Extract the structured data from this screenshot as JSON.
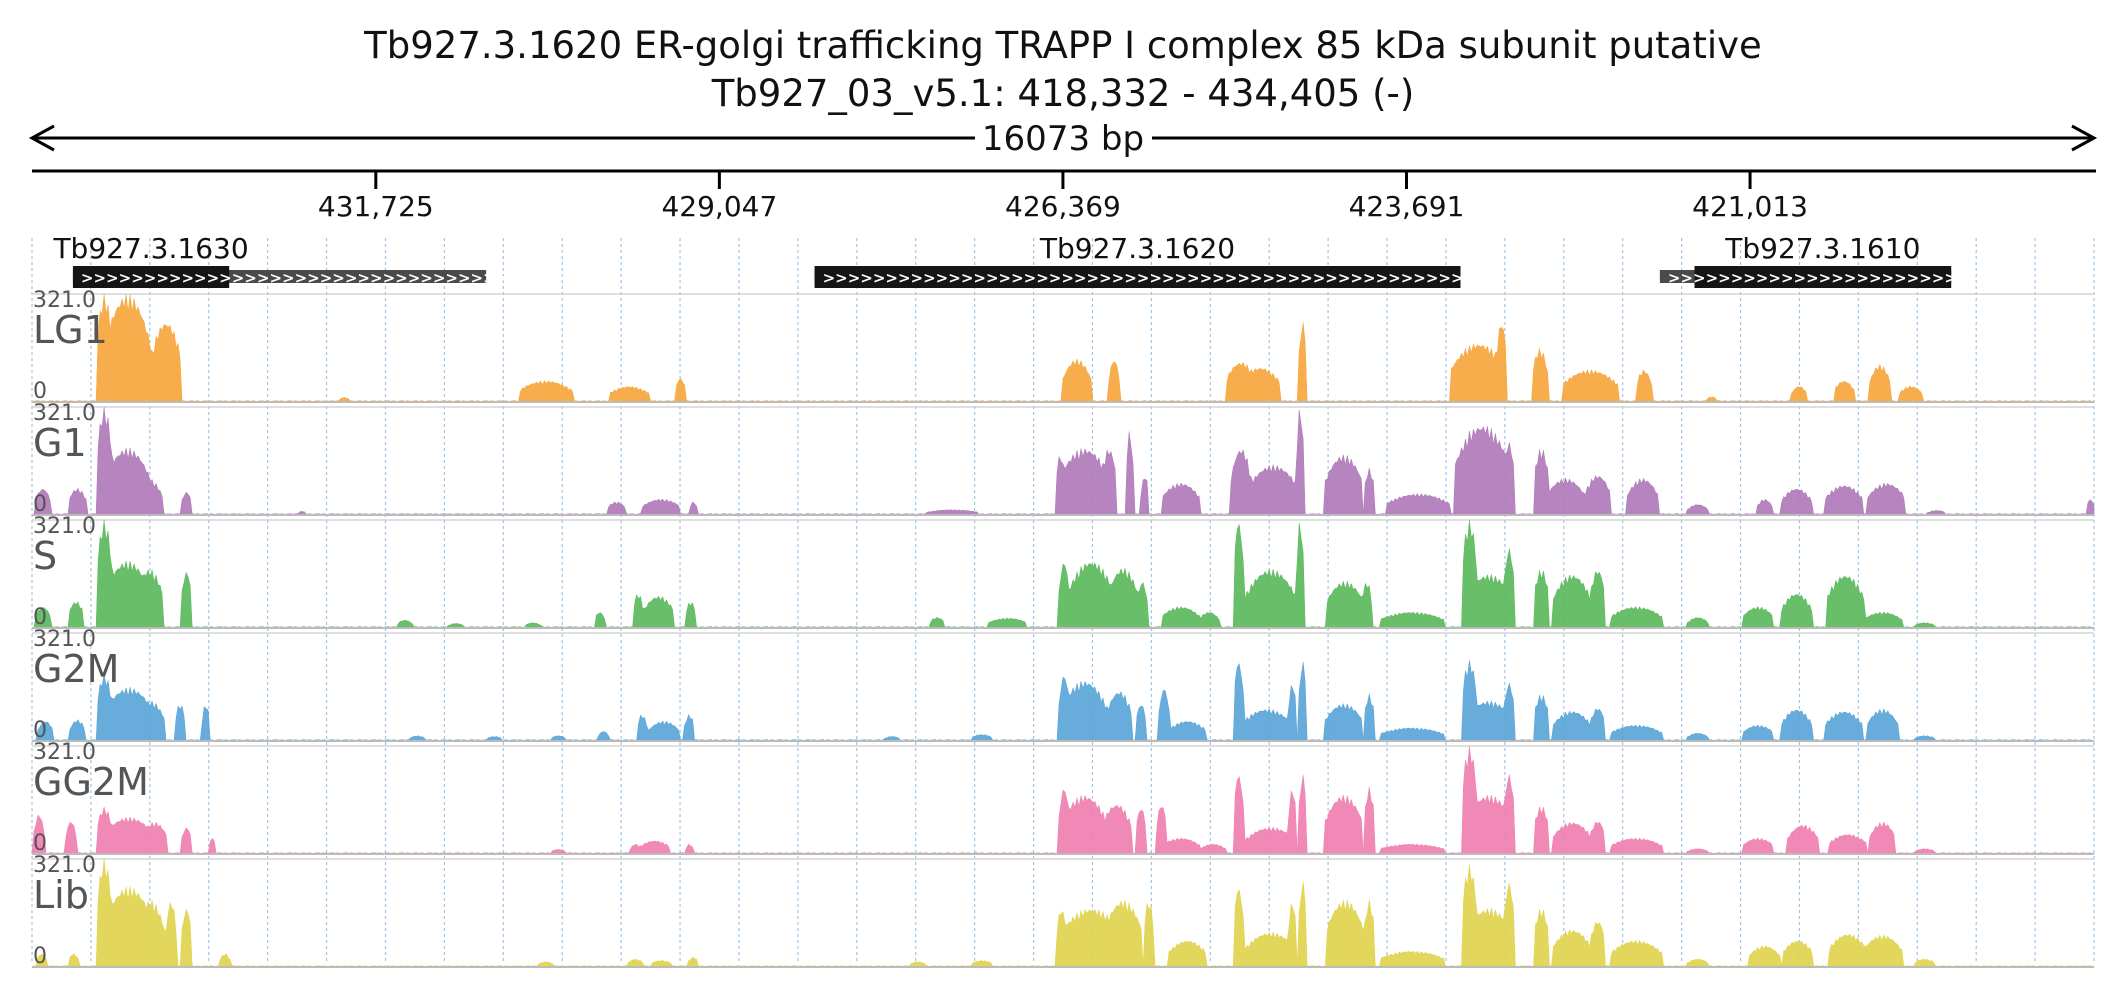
{
  "header": {
    "title": "Tb927.3.1620  ER-golgi trafficking TRAPP I complex 85 kDa subunit  putative",
    "subtitle": "Tb927_03_v5.1: 418,332 - 434,405 (-)",
    "span_label": "16073 bp"
  },
  "chart_data": {
    "type": "area",
    "region": {
      "chromosome": "Tb927_03_v5.1",
      "start": 418332,
      "end": 434405,
      "strand": "-"
    },
    "x_ticks": [
      {
        "pos": 431725,
        "label": "431,725"
      },
      {
        "pos": 429047,
        "label": "429,047"
      },
      {
        "pos": 426369,
        "label": "426,369"
      },
      {
        "pos": 423691,
        "label": "423,691"
      },
      {
        "pos": 421013,
        "label": "421,013"
      }
    ],
    "genes": [
      {
        "label": "Tb927.3.1630",
        "start": 430865,
        "end": 434086,
        "cds_start": 432868,
        "cds_end": 434086,
        "strand": "-"
      },
      {
        "label": "Tb927.3.1620",
        "start": 423270,
        "end": 428305,
        "cds_start": 423270,
        "cds_end": 428305,
        "strand": "-"
      },
      {
        "label": "Tb927.3.1610",
        "start": 419445,
        "end": 421716,
        "cds_start": 419445,
        "cds_end": 421446,
        "strand": "-"
      }
    ],
    "ymax_label": "321.0",
    "ymin_label": "0",
    "ylim": [
      0,
      321
    ],
    "grid": true,
    "series": [
      {
        "name": "LG1",
        "color": "#f6a63c",
        "peaks": [
          [
            433840,
            60,
            321
          ],
          [
            433660,
            180,
            321
          ],
          [
            433360,
            120,
            241
          ],
          [
            433780,
            40,
            160
          ],
          [
            433300,
            30,
            176
          ],
          [
            431970,
            40,
            14
          ],
          [
            430400,
            210,
            64
          ],
          [
            429750,
            160,
            47
          ],
          [
            429350,
            40,
            72
          ],
          [
            426260,
            110,
            128
          ],
          [
            425970,
            40,
            128
          ],
          [
            424980,
            120,
            120
          ],
          [
            424830,
            160,
            104
          ],
          [
            424500,
            30,
            241
          ],
          [
            423130,
            220,
            176
          ],
          [
            422950,
            40,
            241
          ],
          [
            422650,
            60,
            160
          ],
          [
            422260,
            220,
            96
          ],
          [
            421840,
            60,
            96
          ],
          [
            421310,
            40,
            16
          ],
          [
            420630,
            60,
            48
          ],
          [
            420280,
            80,
            64
          ],
          [
            420000,
            80,
            112
          ],
          [
            419760,
            90,
            48
          ]
        ]
      },
      {
        "name": "G1",
        "color": "#b07ab8",
        "peaks": [
          [
            434320,
            60,
            80
          ],
          [
            434050,
            70,
            80
          ],
          [
            433840,
            60,
            321
          ],
          [
            433660,
            180,
            200
          ],
          [
            433500,
            110,
            110
          ],
          [
            433200,
            40,
            70
          ],
          [
            432300,
            30,
            12
          ],
          [
            429850,
            70,
            40
          ],
          [
            429500,
            150,
            48
          ],
          [
            429250,
            30,
            40
          ],
          [
            427230,
            200,
            16
          ],
          [
            426390,
            40,
            180
          ],
          [
            426200,
            200,
            200
          ],
          [
            426010,
            60,
            200
          ],
          [
            425850,
            30,
            250
          ],
          [
            425730,
            30,
            120
          ],
          [
            425450,
            150,
            96
          ],
          [
            424980,
            80,
            200
          ],
          [
            424730,
            200,
            150
          ],
          [
            424520,
            30,
            321
          ],
          [
            424180,
            150,
            180
          ],
          [
            423980,
            40,
            140
          ],
          [
            423600,
            250,
            64
          ],
          [
            423200,
            60,
            250
          ],
          [
            423100,
            220,
            270
          ],
          [
            422890,
            40,
            220
          ],
          [
            422640,
            60,
            200
          ],
          [
            422450,
            150,
            110
          ],
          [
            422200,
            100,
            120
          ],
          [
            421850,
            120,
            110
          ],
          [
            421420,
            80,
            32
          ],
          [
            420900,
            60,
            48
          ],
          [
            420650,
            120,
            80
          ],
          [
            420280,
            150,
            90
          ],
          [
            419950,
            150,
            96
          ],
          [
            419560,
            70,
            14
          ],
          [
            418360,
            30,
            48
          ]
        ]
      },
      {
        "name": "S",
        "color": "#5cb85c",
        "peaks": [
          [
            434320,
            60,
            64
          ],
          [
            434060,
            60,
            80
          ],
          [
            433840,
            60,
            321
          ],
          [
            433660,
            180,
            200
          ],
          [
            433490,
            110,
            176
          ],
          [
            433200,
            40,
            170
          ],
          [
            431500,
            60,
            24
          ],
          [
            431100,
            60,
            14
          ],
          [
            430500,
            60,
            16
          ],
          [
            429980,
            40,
            48
          ],
          [
            429680,
            40,
            104
          ],
          [
            429520,
            120,
            96
          ],
          [
            429270,
            40,
            80
          ],
          [
            427350,
            60,
            32
          ],
          [
            426800,
            150,
            30
          ],
          [
            426360,
            40,
            200
          ],
          [
            426150,
            180,
            200
          ],
          [
            425900,
            120,
            180
          ],
          [
            425750,
            40,
            140
          ],
          [
            425450,
            150,
            64
          ],
          [
            425230,
            80,
            48
          ],
          [
            425000,
            40,
            321
          ],
          [
            424750,
            200,
            176
          ],
          [
            424520,
            30,
            321
          ],
          [
            424170,
            150,
            140
          ],
          [
            424000,
            40,
            140
          ],
          [
            423650,
            250,
            48
          ],
          [
            423200,
            60,
            321
          ],
          [
            423050,
            200,
            160
          ],
          [
            422890,
            40,
            240
          ],
          [
            422640,
            60,
            176
          ],
          [
            422400,
            150,
            160
          ],
          [
            422200,
            60,
            176
          ],
          [
            421900,
            200,
            64
          ],
          [
            421420,
            80,
            32
          ],
          [
            420950,
            120,
            64
          ],
          [
            420650,
            120,
            104
          ],
          [
            420270,
            150,
            160
          ],
          [
            419980,
            150,
            48
          ],
          [
            419650,
            80,
            16
          ]
        ]
      },
      {
        "name": "G2M",
        "color": "#5aa5d8",
        "peaks": [
          [
            434300,
            60,
            60
          ],
          [
            434050,
            60,
            64
          ],
          [
            433840,
            60,
            200
          ],
          [
            433650,
            200,
            160
          ],
          [
            433480,
            110,
            120
          ],
          [
            433250,
            40,
            112
          ],
          [
            433050,
            30,
            112
          ],
          [
            431400,
            60,
            16
          ],
          [
            430800,
            60,
            14
          ],
          [
            430300,
            60,
            16
          ],
          [
            429950,
            40,
            30
          ],
          [
            429650,
            40,
            80
          ],
          [
            429480,
            120,
            60
          ],
          [
            429280,
            40,
            80
          ],
          [
            427700,
            60,
            14
          ],
          [
            427000,
            80,
            20
          ],
          [
            426360,
            40,
            200
          ],
          [
            426200,
            180,
            180
          ],
          [
            425930,
            100,
            150
          ],
          [
            425760,
            40,
            112
          ],
          [
            425580,
            40,
            160
          ],
          [
            425400,
            150,
            60
          ],
          [
            425000,
            40,
            240
          ],
          [
            424780,
            200,
            96
          ],
          [
            424580,
            30,
            176
          ],
          [
            424500,
            30,
            240
          ],
          [
            424180,
            150,
            112
          ],
          [
            423980,
            40,
            140
          ],
          [
            423650,
            250,
            40
          ],
          [
            423200,
            60,
            240
          ],
          [
            423050,
            200,
            120
          ],
          [
            422890,
            40,
            176
          ],
          [
            422640,
            60,
            140
          ],
          [
            422400,
            150,
            90
          ],
          [
            422200,
            60,
            100
          ],
          [
            421900,
            200,
            48
          ],
          [
            421420,
            80,
            24
          ],
          [
            420950,
            120,
            48
          ],
          [
            420650,
            120,
            96
          ],
          [
            420280,
            150,
            90
          ],
          [
            419980,
            120,
            96
          ],
          [
            419650,
            80,
            16
          ]
        ]
      },
      {
        "name": "GG2M",
        "color": "#ef7fb0",
        "peaks": [
          [
            434350,
            40,
            120
          ],
          [
            434100,
            40,
            100
          ],
          [
            433840,
            60,
            140
          ],
          [
            433650,
            200,
            110
          ],
          [
            433450,
            100,
            96
          ],
          [
            433200,
            40,
            80
          ],
          [
            433000,
            30,
            48
          ],
          [
            430300,
            60,
            14
          ],
          [
            429700,
            40,
            30
          ],
          [
            429550,
            120,
            40
          ],
          [
            429280,
            30,
            30
          ],
          [
            426360,
            40,
            200
          ],
          [
            426200,
            180,
            176
          ],
          [
            425950,
            120,
            150
          ],
          [
            425760,
            40,
            140
          ],
          [
            425600,
            40,
            150
          ],
          [
            425450,
            150,
            48
          ],
          [
            425200,
            100,
            30
          ],
          [
            425000,
            40,
            240
          ],
          [
            424750,
            200,
            80
          ],
          [
            424580,
            30,
            200
          ],
          [
            424500,
            30,
            240
          ],
          [
            424180,
            150,
            176
          ],
          [
            423980,
            40,
            200
          ],
          [
            423650,
            250,
            30
          ],
          [
            423200,
            60,
            321
          ],
          [
            423050,
            200,
            176
          ],
          [
            422890,
            40,
            240
          ],
          [
            422640,
            60,
            144
          ],
          [
            422400,
            150,
            96
          ],
          [
            422200,
            60,
            100
          ],
          [
            421900,
            200,
            48
          ],
          [
            421420,
            80,
            16
          ],
          [
            420950,
            120,
            48
          ],
          [
            420600,
            120,
            88
          ],
          [
            420250,
            150,
            60
          ],
          [
            419980,
            100,
            96
          ],
          [
            419650,
            80,
            16
          ]
        ]
      },
      {
        "name": "Lib",
        "color": "#e0d44e",
        "peaks": [
          [
            434330,
            40,
            40
          ],
          [
            434080,
            40,
            40
          ],
          [
            433840,
            60,
            321
          ],
          [
            433650,
            200,
            240
          ],
          [
            433480,
            110,
            200
          ],
          [
            433320,
            40,
            200
          ],
          [
            433200,
            40,
            176
          ],
          [
            432900,
            40,
            40
          ],
          [
            430400,
            60,
            16
          ],
          [
            429700,
            60,
            24
          ],
          [
            429500,
            80,
            20
          ],
          [
            429250,
            40,
            30
          ],
          [
            427500,
            60,
            16
          ],
          [
            427000,
            80,
            20
          ],
          [
            426380,
            40,
            176
          ],
          [
            426150,
            250,
            176
          ],
          [
            425900,
            150,
            200
          ],
          [
            425700,
            40,
            200
          ],
          [
            425400,
            150,
            80
          ],
          [
            425000,
            40,
            240
          ],
          [
            424750,
            200,
            104
          ],
          [
            424580,
            30,
            200
          ],
          [
            424500,
            30,
            260
          ],
          [
            424170,
            150,
            200
          ],
          [
            423980,
            40,
            200
          ],
          [
            423650,
            250,
            48
          ],
          [
            423200,
            60,
            304
          ],
          [
            423050,
            200,
            176
          ],
          [
            422890,
            40,
            256
          ],
          [
            422640,
            60,
            176
          ],
          [
            422400,
            150,
            112
          ],
          [
            422200,
            60,
            140
          ],
          [
            421900,
            200,
            80
          ],
          [
            421420,
            80,
            24
          ],
          [
            420900,
            120,
            64
          ],
          [
            420640,
            120,
            80
          ],
          [
            420250,
            150,
            100
          ],
          [
            419980,
            150,
            96
          ],
          [
            419650,
            80,
            24
          ]
        ]
      }
    ]
  }
}
